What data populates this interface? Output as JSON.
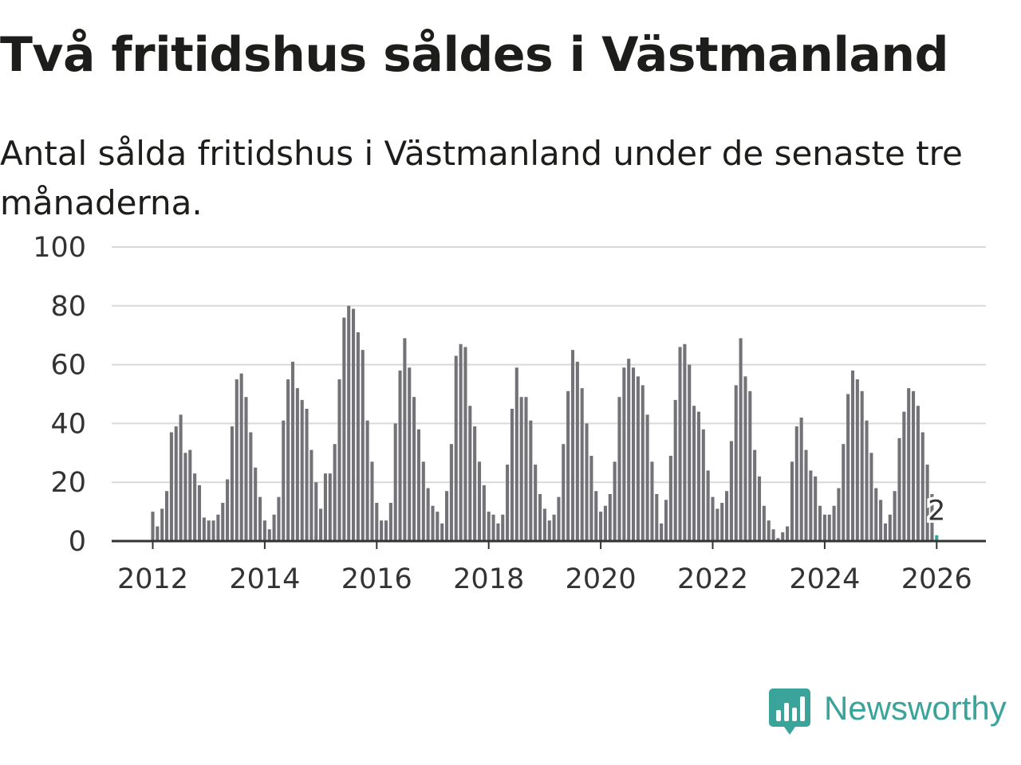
{
  "title": "Två fritidshus såldes i Västmanland",
  "subtitle": "Antal sålda fritidshus i Västmanland under de senaste tre månaderna.",
  "brand": {
    "name": "Newsworthy",
    "color": "#3aa39a"
  },
  "colors": {
    "bar": "#737277",
    "highlight": "#3aa39a",
    "grid": "#d9d9d9",
    "axis": "#333333"
  },
  "chart_data": {
    "type": "bar",
    "title": "Två fritidshus såldes i Västmanland",
    "xlabel": "",
    "ylabel": "",
    "ylim": [
      0,
      100
    ],
    "yticks": [
      "0",
      "20",
      "40",
      "60",
      "80",
      "100"
    ],
    "xticks": [
      "2012",
      "2014",
      "2016",
      "2018",
      "2020",
      "2022",
      "2024",
      "2026"
    ],
    "start": "2012-01",
    "values": [
      10,
      5,
      11,
      17,
      37,
      39,
      43,
      30,
      31,
      23,
      19,
      8,
      7,
      7,
      9,
      13,
      21,
      39,
      55,
      57,
      49,
      37,
      25,
      15,
      7,
      4,
      9,
      15,
      41,
      55,
      61,
      52,
      48,
      45,
      31,
      20,
      11,
      23,
      23,
      33,
      55,
      76,
      80,
      79,
      71,
      65,
      41,
      27,
      13,
      7,
      7,
      13,
      40,
      58,
      69,
      59,
      49,
      38,
      27,
      18,
      12,
      10,
      6,
      17,
      33,
      63,
      67,
      66,
      46,
      39,
      27,
      19,
      10,
      9,
      6,
      9,
      26,
      45,
      59,
      49,
      49,
      41,
      26,
      16,
      11,
      7,
      9,
      15,
      33,
      51,
      65,
      61,
      52,
      40,
      29,
      17,
      10,
      12,
      16,
      27,
      49,
      59,
      62,
      59,
      56,
      53,
      43,
      27,
      16,
      6,
      14,
      29,
      48,
      66,
      67,
      60,
      46,
      44,
      38,
      24,
      15,
      11,
      13,
      17,
      34,
      53,
      69,
      56,
      51,
      31,
      22,
      12,
      7,
      4,
      1,
      3,
      5,
      27,
      39,
      42,
      31,
      24,
      22,
      12,
      9,
      9,
      12,
      18,
      33,
      50,
      58,
      55,
      51,
      41,
      30,
      18,
      14,
      6,
      9,
      17,
      35,
      44,
      52,
      51,
      46,
      37,
      26,
      16,
      2
    ],
    "highlight_value": 2,
    "annotation": "2"
  }
}
